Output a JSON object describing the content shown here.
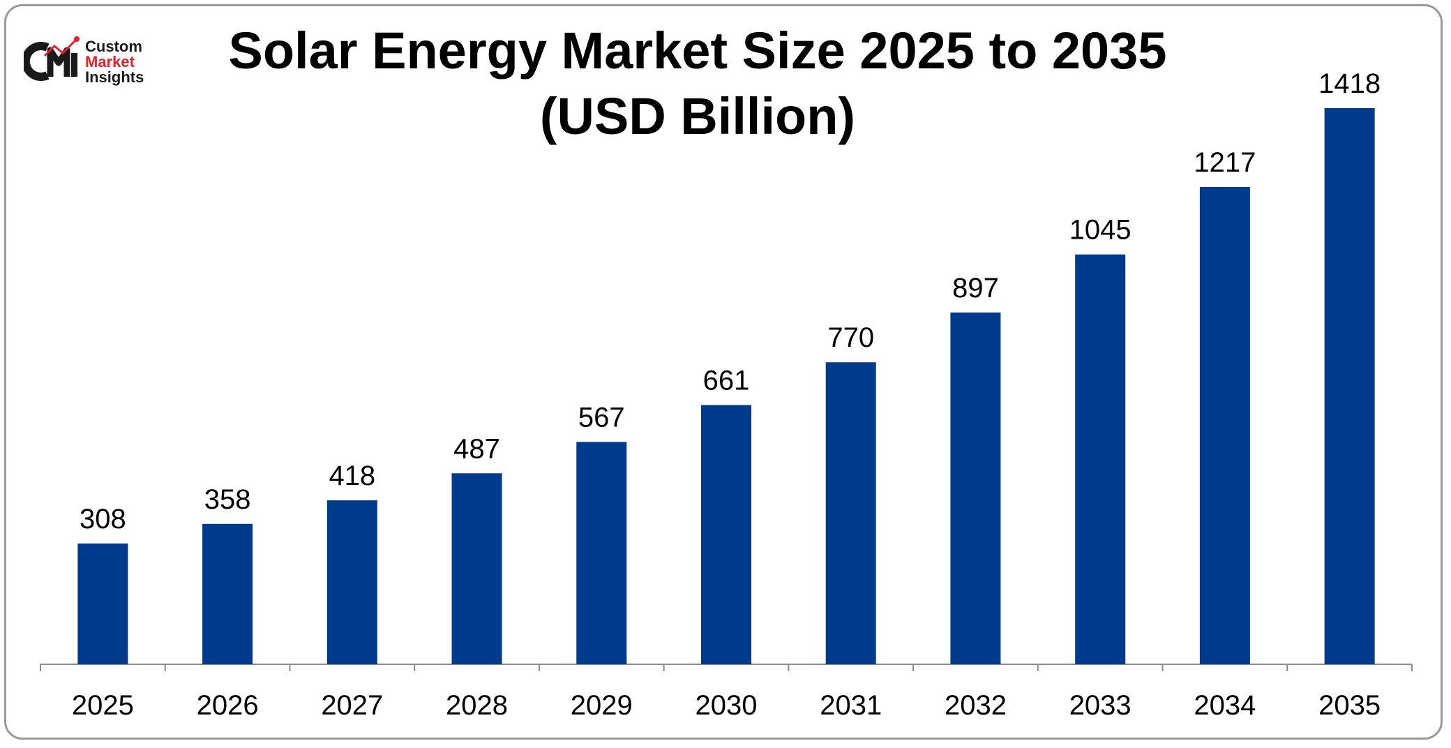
{
  "chart_data": {
    "type": "bar",
    "title_line1": "Solar Energy Market Size 2025 to 2035",
    "title_line2": "(USD Billion)",
    "categories": [
      "2025",
      "2026",
      "2027",
      "2028",
      "2029",
      "2030",
      "2031",
      "2032",
      "2033",
      "2034",
      "2035"
    ],
    "values": [
      308,
      358,
      418,
      487,
      567,
      661,
      770,
      897,
      1045,
      1217,
      1418
    ],
    "xlabel": "",
    "ylabel": "",
    "ylim": [
      0,
      1500
    ],
    "grid": false,
    "legend": "none",
    "bar_color": "#003a8c",
    "data_labels": true
  },
  "logo": {
    "mark": "CMI",
    "line1": "Custom",
    "line2": "Market",
    "line3": "Insights",
    "accent": "#e8202a"
  }
}
